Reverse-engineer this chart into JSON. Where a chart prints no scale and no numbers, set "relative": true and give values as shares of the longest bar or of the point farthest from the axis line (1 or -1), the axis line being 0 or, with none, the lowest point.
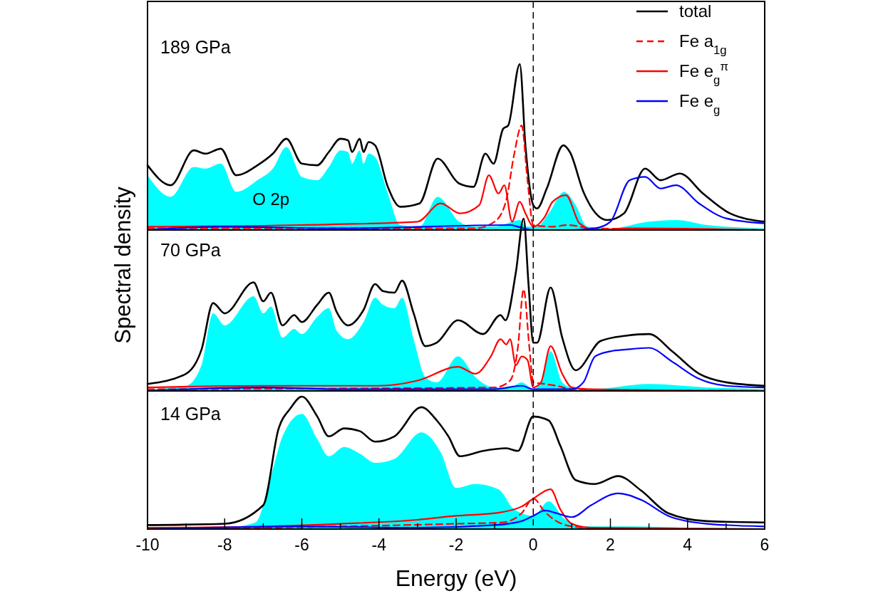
{
  "chart_data": [
    {
      "type": "line",
      "title": "189 GPa",
      "relative": true,
      "xlim": [
        -10,
        6
      ],
      "tick_labels": false,
      "legend": "top right",
      "ref_lines": [
        {
          "axis": "x",
          "value": 0,
          "line_style": "dashed",
          "color": "#000000"
        }
      ],
      "series": [
        {
          "name": "O 2p",
          "type": "area",
          "color": "#00ffff",
          "x": [
            -10,
            -9.4,
            -8.8,
            -8.5,
            -8.1,
            -7.7,
            -7.15,
            -6.75,
            -6.4,
            -6.0,
            -5.6,
            -5.3,
            -5.0,
            -4.8,
            -4.7,
            -4.5,
            -4.4,
            -4.27,
            -4.1,
            -3.77,
            -3.45,
            -2.95,
            -2.48,
            -1.92,
            -1.55,
            -1.0,
            -0.35,
            -0.2,
            0.1,
            0.4,
            0.8,
            1.1,
            1.4,
            2.0,
            3.0,
            3.7,
            4.5,
            6.0
          ],
          "values": [
            0.33,
            0.2,
            0.38,
            0.37,
            0.4,
            0.23,
            0.3,
            0.37,
            0.5,
            0.32,
            0.3,
            0.38,
            0.48,
            0.47,
            0.4,
            0.48,
            0.4,
            0.46,
            0.44,
            0.22,
            0.03,
            0.02,
            0.2,
            0.05,
            0.02,
            0.02,
            0.06,
            0.02,
            0.02,
            0.1,
            0.23,
            0.15,
            0.02,
            0.01,
            0.05,
            0.06,
            0.03,
            0.01
          ]
        },
        {
          "name": "total",
          "color": "#000000",
          "x": [
            -10,
            -9.4,
            -8.8,
            -8.5,
            -8.1,
            -7.7,
            -7.15,
            -6.75,
            -6.4,
            -6.0,
            -5.6,
            -5.3,
            -5.0,
            -4.8,
            -4.7,
            -4.5,
            -4.4,
            -4.27,
            -4.1,
            -3.77,
            -3.45,
            -2.95,
            -2.48,
            -1.92,
            -1.55,
            -1.24,
            -1.03,
            -0.78,
            -0.65,
            -0.35,
            -0.2,
            0.0,
            0.1,
            0.35,
            0.78,
            0.95,
            1.3,
            1.92,
            2.35,
            2.9,
            3.3,
            3.8,
            4.4,
            5.1,
            6.0
          ],
          "values": [
            0.39,
            0.27,
            0.48,
            0.46,
            0.49,
            0.33,
            0.39,
            0.46,
            0.55,
            0.4,
            0.39,
            0.47,
            0.55,
            0.54,
            0.47,
            0.55,
            0.47,
            0.53,
            0.51,
            0.26,
            0.14,
            0.16,
            0.43,
            0.28,
            0.26,
            0.46,
            0.4,
            0.61,
            0.63,
            1.0,
            0.5,
            0.15,
            0.13,
            0.25,
            0.51,
            0.47,
            0.23,
            0.06,
            0.1,
            0.37,
            0.3,
            0.34,
            0.22,
            0.1,
            0.05
          ]
        },
        {
          "name": "Fe a$_{1g}$",
          "color": "#ff0000",
          "line_style": "dashed",
          "x": [
            -10,
            -1.5,
            -1.0,
            -0.7,
            -0.5,
            -0.3,
            -0.15,
            0.0,
            0.5,
            0.9,
            1.5,
            6.0
          ],
          "values": [
            0.01,
            0.01,
            0.05,
            0.18,
            0.45,
            0.63,
            0.3,
            0.03,
            0.02,
            0.03,
            0.01,
            0.0
          ]
        },
        {
          "name": "Fe e$_{g}$$^{π}$",
          "color": "#ff0000",
          "x": [
            -10,
            -6,
            -3,
            -2.4,
            -1.9,
            -1.4,
            -1.15,
            -0.9,
            -0.75,
            -0.55,
            -0.35,
            -0.2,
            0.0,
            0.3,
            0.5,
            0.85,
            1.2,
            1.6,
            2.5,
            6.0
          ],
          "values": [
            0.02,
            0.03,
            0.05,
            0.16,
            0.1,
            0.15,
            0.33,
            0.22,
            0.27,
            0.05,
            0.17,
            0.1,
            0.02,
            0.08,
            0.17,
            0.21,
            0.04,
            0.0,
            0.01,
            0.0
          ]
        },
        {
          "name": "Fe e$_{g}$",
          "color": "#0000ff",
          "x": [
            -10,
            -8.1,
            -5,
            -0.6,
            -0.4,
            0.0,
            1.0,
            1.6,
            2.0,
            2.5,
            2.9,
            3.3,
            3.7,
            4.3,
            5.0,
            6.0
          ],
          "values": [
            0.0,
            0.02,
            0.01,
            0.03,
            0.02,
            0.0,
            0.0,
            0.01,
            0.05,
            0.3,
            0.32,
            0.25,
            0.27,
            0.16,
            0.07,
            0.04
          ]
        }
      ]
    },
    {
      "type": "line",
      "title": "70 GPa",
      "relative": true,
      "xlim": [
        -10,
        6
      ],
      "tick_labels": false,
      "ylabel": "Spectral density",
      "ref_lines": [
        {
          "axis": "x",
          "value": 0,
          "line_style": "dashed",
          "color": "#000000"
        }
      ],
      "series": [
        {
          "type": "area",
          "color": "#00ffff",
          "x": [
            -10,
            -9,
            -8.6,
            -8.3,
            -8.0,
            -7.25,
            -7.0,
            -6.8,
            -6.5,
            -6.2,
            -6.0,
            -5.6,
            -5.3,
            -5.1,
            -4.8,
            -4.4,
            -4.1,
            -3.9,
            -3.6,
            -3.4,
            -3.1,
            -2.8,
            -2.5,
            -1.95,
            -1.5,
            -1.0,
            -0.6,
            -0.3,
            0.0,
            0.2,
            0.45,
            0.75,
            1.0,
            1.5,
            3.0,
            4.5,
            6.0
          ],
          "values": [
            0.01,
            0.03,
            0.15,
            0.45,
            0.38,
            0.55,
            0.45,
            0.49,
            0.31,
            0.36,
            0.33,
            0.43,
            0.48,
            0.35,
            0.3,
            0.4,
            0.54,
            0.5,
            0.48,
            0.54,
            0.3,
            0.08,
            0.05,
            0.2,
            0.08,
            0.02,
            0.02,
            0.05,
            0.01,
            0.05,
            0.23,
            0.05,
            0.02,
            0.01,
            0.04,
            0.02,
            0.01
          ]
        },
        {
          "color": "#000000",
          "x": [
            -10,
            -9,
            -8.6,
            -8.3,
            -8.0,
            -7.25,
            -7.0,
            -6.8,
            -6.5,
            -6.2,
            -6.0,
            -5.6,
            -5.3,
            -5.1,
            -4.8,
            -4.4,
            -4.1,
            -3.9,
            -3.6,
            -3.4,
            -3.1,
            -2.8,
            -2.5,
            -1.95,
            -1.3,
            -0.85,
            -0.72,
            -0.45,
            -0.25,
            -0.12,
            0.0,
            0.1,
            0.45,
            0.75,
            1.1,
            1.75,
            2.4,
            3.0,
            3.6,
            4.3,
            5.0,
            6.0
          ],
          "values": [
            0.04,
            0.1,
            0.24,
            0.51,
            0.45,
            0.63,
            0.52,
            0.57,
            0.38,
            0.44,
            0.4,
            0.5,
            0.57,
            0.46,
            0.38,
            0.47,
            0.62,
            0.58,
            0.57,
            0.64,
            0.45,
            0.26,
            0.28,
            0.41,
            0.33,
            0.44,
            0.41,
            0.69,
            1.0,
            0.61,
            0.28,
            0.28,
            0.6,
            0.31,
            0.12,
            0.29,
            0.32,
            0.33,
            0.23,
            0.1,
            0.05,
            0.03
          ]
        },
        {
          "color": "#ff0000",
          "line_style": "dashed",
          "x": [
            -10,
            -1.0,
            -0.6,
            -0.4,
            -0.25,
            -0.1,
            0.0,
            0.3,
            0.6,
            1.0,
            6.0
          ],
          "values": [
            0.01,
            0.02,
            0.06,
            0.25,
            0.59,
            0.25,
            0.05,
            0.04,
            0.03,
            0.01,
            0.0
          ]
        },
        {
          "color": "#ff0000",
          "x": [
            -10,
            -7,
            -4,
            -3,
            -1.95,
            -1.5,
            -1.1,
            -0.85,
            -0.7,
            -0.6,
            -0.45,
            -0.3,
            -0.15,
            0.0,
            0.2,
            0.45,
            0.75,
            1.0,
            1.5,
            6.0
          ],
          "values": [
            0.02,
            0.03,
            0.03,
            0.06,
            0.14,
            0.1,
            0.2,
            0.3,
            0.27,
            0.3,
            0.15,
            0.2,
            0.18,
            0.02,
            0.05,
            0.26,
            0.1,
            0.02,
            0.01,
            0.0
          ]
        },
        {
          "color": "#0000ff",
          "x": [
            -10,
            -7,
            -5,
            -1,
            -0.3,
            0.0,
            1.0,
            1.3,
            1.6,
            2.0,
            2.4,
            3.0,
            3.6,
            4.3,
            5.0,
            6.0
          ],
          "values": [
            0.0,
            0.02,
            0.01,
            0.01,
            0.03,
            0.01,
            0.01,
            0.05,
            0.2,
            0.23,
            0.24,
            0.25,
            0.17,
            0.07,
            0.03,
            0.02
          ]
        }
      ]
    },
    {
      "type": "line",
      "title": "14 GPa",
      "relative": true,
      "xlim": [
        -10,
        6
      ],
      "tick_labels": "x",
      "xlabel": "Energy (eV)",
      "xticks": [
        -10,
        {
          "value": -9,
          "label": null
        },
        -8,
        {
          "value": -7,
          "label": null
        },
        -6,
        {
          "value": -5,
          "label": null
        },
        -4,
        {
          "value": -3,
          "label": null
        },
        -2,
        {
          "value": -1,
          "label": null
        },
        0,
        {
          "value": 1,
          "label": null
        },
        2,
        {
          "value": 3,
          "label": null
        },
        4,
        {
          "value": 5,
          "label": null
        },
        6
      ],
      "ref_lines": [
        {
          "axis": "x",
          "value": 0,
          "line_style": "dashed",
          "color": "#000000"
        }
      ],
      "series": [
        {
          "type": "area",
          "color": "#00ffff",
          "x": [
            -10,
            -8,
            -7.2,
            -6.8,
            -6.5,
            -6.0,
            -5.6,
            -5.3,
            -4.9,
            -4.5,
            -4.1,
            -3.6,
            -2.9,
            -2.4,
            -2.0,
            -1.5,
            -0.9,
            -0.5,
            0.0,
            0.4,
            0.8,
            1.2,
            2.5,
            4.0,
            6.0
          ],
          "values": [
            0.0,
            0.01,
            0.05,
            0.4,
            0.7,
            0.87,
            0.68,
            0.55,
            0.62,
            0.57,
            0.5,
            0.53,
            0.73,
            0.58,
            0.31,
            0.34,
            0.3,
            0.15,
            0.1,
            0.21,
            0.08,
            0.02,
            0.02,
            0.01,
            0.0
          ]
        },
        {
          "color": "#000000",
          "x": [
            -10,
            -8,
            -7,
            -6.6,
            -6.3,
            -6.0,
            -5.6,
            -5.3,
            -4.9,
            -4.5,
            -4.1,
            -3.6,
            -2.9,
            -2.5,
            -2.2,
            -1.9,
            -1.3,
            -0.7,
            -0.4,
            0.0,
            0.4,
            0.7,
            1.1,
            1.6,
            2.2,
            2.8,
            3.5,
            4.5,
            6.0
          ],
          "values": [
            0.03,
            0.04,
            0.18,
            0.76,
            0.91,
            1.0,
            0.85,
            0.7,
            0.76,
            0.74,
            0.66,
            0.7,
            0.92,
            0.82,
            0.7,
            0.55,
            0.59,
            0.61,
            0.59,
            0.85,
            0.82,
            0.63,
            0.37,
            0.34,
            0.4,
            0.29,
            0.12,
            0.06,
            0.05
          ]
        },
        {
          "color": "#ff0000",
          "line_style": "dashed",
          "x": [
            -10,
            -5,
            -2,
            -0.8,
            -0.3,
            0.0,
            0.3,
            0.6,
            1.0,
            2.0,
            6.0
          ],
          "values": [
            0.0,
            0.02,
            0.04,
            0.05,
            0.12,
            0.23,
            0.13,
            0.06,
            0.02,
            0.0,
            0.0
          ]
        },
        {
          "color": "#ff0000",
          "x": [
            -10,
            -7,
            -5,
            -3,
            -2,
            -1,
            -0.3,
            0.0,
            0.45,
            0.7,
            1.0,
            1.5,
            6.0
          ],
          "values": [
            0.01,
            0.02,
            0.04,
            0.07,
            0.1,
            0.12,
            0.17,
            0.23,
            0.3,
            0.15,
            0.04,
            0.01,
            0.0
          ]
        },
        {
          "color": "#0000ff",
          "x": [
            -10,
            -6,
            -3,
            -1,
            -0.3,
            0.0,
            0.3,
            0.6,
            1.0,
            1.5,
            2.2,
            2.8,
            3.5,
            4.5,
            6.0
          ],
          "values": [
            0.0,
            0.02,
            0.01,
            0.03,
            0.06,
            0.1,
            0.14,
            0.12,
            0.09,
            0.18,
            0.27,
            0.22,
            0.1,
            0.04,
            0.02
          ]
        }
      ]
    }
  ]
}
